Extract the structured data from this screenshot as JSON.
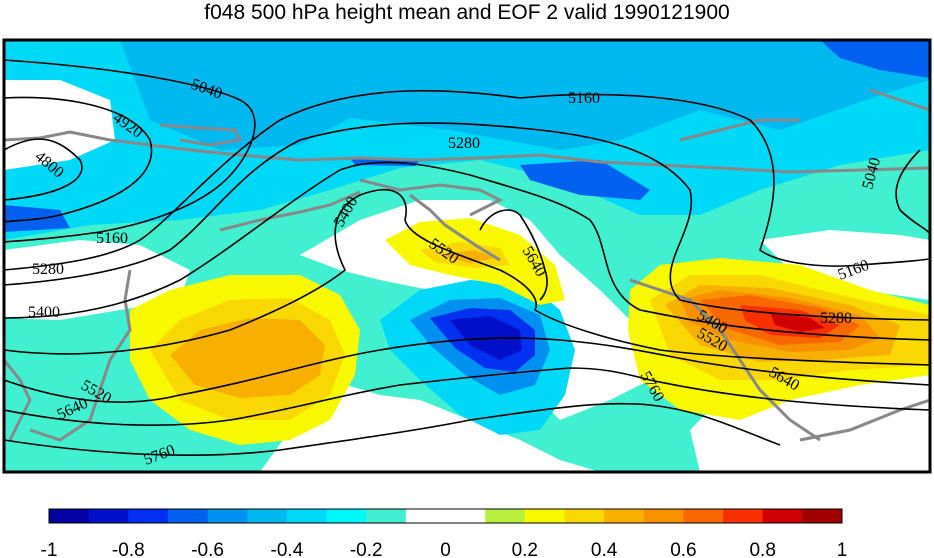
{
  "title": "f048 500 hPa height mean and EOF 2 valid 1990121900",
  "contour_labels": [
    "4800",
    "4920",
    "5040",
    "5040",
    "5160",
    "5160",
    "5160",
    "5280",
    "5280",
    "5280",
    "5400",
    "5400",
    "5400",
    "5520",
    "5520",
    "5520",
    "5640",
    "5640",
    "5640",
    "5760",
    "5760"
  ],
  "colorbar": {
    "colors": [
      "#0000a0",
      "#0010c8",
      "#0030f0",
      "#0060f0",
      "#0090f0",
      "#00b8f0",
      "#00d8f8",
      "#00f8f8",
      "#40f0d0",
      "#ffffff",
      "#ffffff",
      "#b8f040",
      "#f8f800",
      "#f8d800",
      "#f8b000",
      "#f89000",
      "#f86800",
      "#f83000",
      "#d00000",
      "#a00000"
    ],
    "tick_labels": [
      "-1",
      "-0.8",
      "-0.6",
      "-0.4",
      "-0.2",
      "0",
      "0.2",
      "0.4",
      "0.6",
      "0.8",
      "1"
    ]
  },
  "colors": {
    "coast": "#888888",
    "contour": "#000000"
  }
}
